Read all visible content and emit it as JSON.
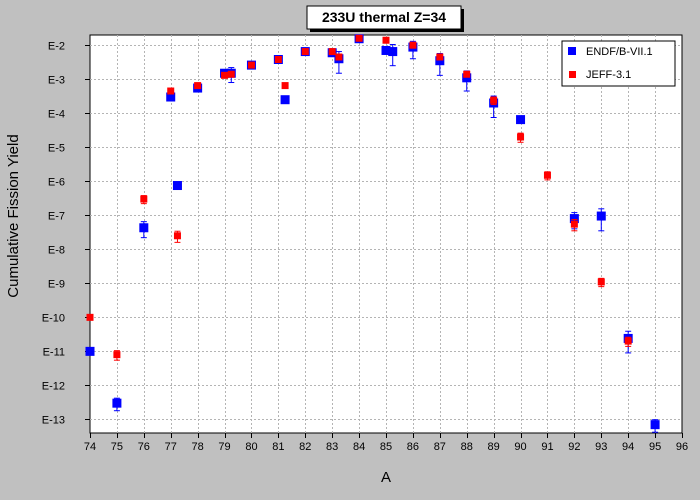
{
  "chart_data": {
    "type": "scatter",
    "title": "233U thermal Z=34",
    "xlabel": "A",
    "ylabel": "Cumulative Fission Yield",
    "y_scale": "log",
    "xlim": [
      74,
      96
    ],
    "ylim_exponent": [
      -13.4,
      -1.7
    ],
    "x_ticks": [
      "74",
      "75",
      "76",
      "77",
      "78",
      "79",
      "80",
      "81",
      "82",
      "83",
      "84",
      "85",
      "86",
      "87",
      "88",
      "89",
      "90",
      "91",
      "92",
      "93",
      "94",
      "95",
      "96"
    ],
    "y_ticks": [
      "E-2",
      "E-3",
      "E-4",
      "E-5",
      "E-6",
      "E-7",
      "E-8",
      "E-9",
      "E-10",
      "E-11",
      "E-12",
      "E-13"
    ],
    "grid": true,
    "legend_position": "top-right",
    "series": [
      {
        "name": "ENDF/B-VII.1",
        "color": "#0000ff",
        "marker": "square",
        "points": [
          {
            "x": 74.0,
            "y": 1e-11
          },
          {
            "x": 75.0,
            "y": 3e-13,
            "err_lo": 1.8e-13,
            "err_hi": 4.2e-13
          },
          {
            "x": 76.0,
            "y": 4.3e-08,
            "err_lo": 2.2e-08,
            "err_hi": 6.5e-08
          },
          {
            "x": 77.0,
            "y": 0.0003
          },
          {
            "x": 77.25,
            "y": 7.5e-07
          },
          {
            "x": 78.0,
            "y": 0.00055
          },
          {
            "x": 79.0,
            "y": 0.0015
          },
          {
            "x": 79.25,
            "y": 0.0015,
            "err_lo": 0.0008,
            "err_hi": 0.0022
          },
          {
            "x": 80.0,
            "y": 0.0026
          },
          {
            "x": 81.0,
            "y": 0.0038
          },
          {
            "x": 81.25,
            "y": 0.00025
          },
          {
            "x": 82.0,
            "y": 0.0065
          },
          {
            "x": 83.0,
            "y": 0.006
          },
          {
            "x": 83.25,
            "y": 0.004,
            "err_lo": 0.0015,
            "err_hi": 0.0065
          },
          {
            "x": 84.0,
            "y": 0.0155
          },
          {
            "x": 85.0,
            "y": 0.007
          },
          {
            "x": 85.25,
            "y": 0.0065,
            "err_lo": 0.0025,
            "err_hi": 0.0105
          },
          {
            "x": 86.0,
            "y": 0.0088,
            "err_lo": 0.004,
            "err_hi": 0.013
          },
          {
            "x": 87.0,
            "y": 0.0035,
            "err_lo": 0.0013,
            "err_hi": 0.0057
          },
          {
            "x": 88.0,
            "y": 0.0011,
            "err_lo": 0.00045,
            "err_hi": 0.00175
          },
          {
            "x": 89.0,
            "y": 0.0002,
            "err_lo": 7.5e-05,
            "err_hi": 0.00032
          },
          {
            "x": 90.0,
            "y": 6.5e-05
          },
          {
            "x": 92.0,
            "y": 8e-08,
            "err_lo": 4e-08,
            "err_hi": 1.2e-07
          },
          {
            "x": 93.0,
            "y": 9.5e-08,
            "err_lo": 3.5e-08,
            "err_hi": 1.55e-07
          },
          {
            "x": 94.0,
            "y": 2.4e-11,
            "err_lo": 9e-12,
            "err_hi": 3.9e-11
          },
          {
            "x": 95.0,
            "y": 7e-14,
            "err_lo": 4.2e-14,
            "err_hi": 9.8e-14
          }
        ]
      },
      {
        "name": "JEFF-3.1",
        "color": "#ff0000",
        "marker": "square",
        "points": [
          {
            "x": 74.0,
            "y": 1e-10
          },
          {
            "x": 75.0,
            "y": 8e-12,
            "err_lo": 5.5e-12,
            "err_hi": 1.05e-11
          },
          {
            "x": 76.0,
            "y": 3e-07,
            "err_lo": 2.2e-07,
            "err_hi": 3.8e-07
          },
          {
            "x": 77.0,
            "y": 0.00045
          },
          {
            "x": 77.25,
            "y": 2.5e-08,
            "err_lo": 1.6e-08,
            "err_hi": 3.4e-08
          },
          {
            "x": 78.0,
            "y": 0.00065
          },
          {
            "x": 79.0,
            "y": 0.0013
          },
          {
            "x": 79.25,
            "y": 0.0014
          },
          {
            "x": 80.0,
            "y": 0.0026
          },
          {
            "x": 81.0,
            "y": 0.0038
          },
          {
            "x": 81.25,
            "y": 0.00065
          },
          {
            "x": 82.0,
            "y": 0.0065
          },
          {
            "x": 83.0,
            "y": 0.0065
          },
          {
            "x": 83.25,
            "y": 0.0045
          },
          {
            "x": 84.0,
            "y": 0.016
          },
          {
            "x": 85.0,
            "y": 0.014
          },
          {
            "x": 86.0,
            "y": 0.01
          },
          {
            "x": 87.0,
            "y": 0.0045
          },
          {
            "x": 88.0,
            "y": 0.0014
          },
          {
            "x": 89.0,
            "y": 0.00024,
            "err_lo": 0.00018,
            "err_hi": 0.0003
          },
          {
            "x": 90.0,
            "y": 2e-05,
            "err_lo": 1.4e-05,
            "err_hi": 2.6e-05
          },
          {
            "x": 91.0,
            "y": 1.5e-06,
            "err_lo": 1.1e-06,
            "err_hi": 1.9e-06
          },
          {
            "x": 92.0,
            "y": 5.5e-08,
            "err_lo": 3.5e-08,
            "err_hi": 7.5e-08
          },
          {
            "x": 93.0,
            "y": 1.1e-09,
            "err_lo": 8e-10,
            "err_hi": 1.4e-09
          },
          {
            "x": 94.0,
            "y": 2e-11,
            "err_lo": 1.4e-11,
            "err_hi": 2.6e-11
          }
        ]
      }
    ]
  }
}
